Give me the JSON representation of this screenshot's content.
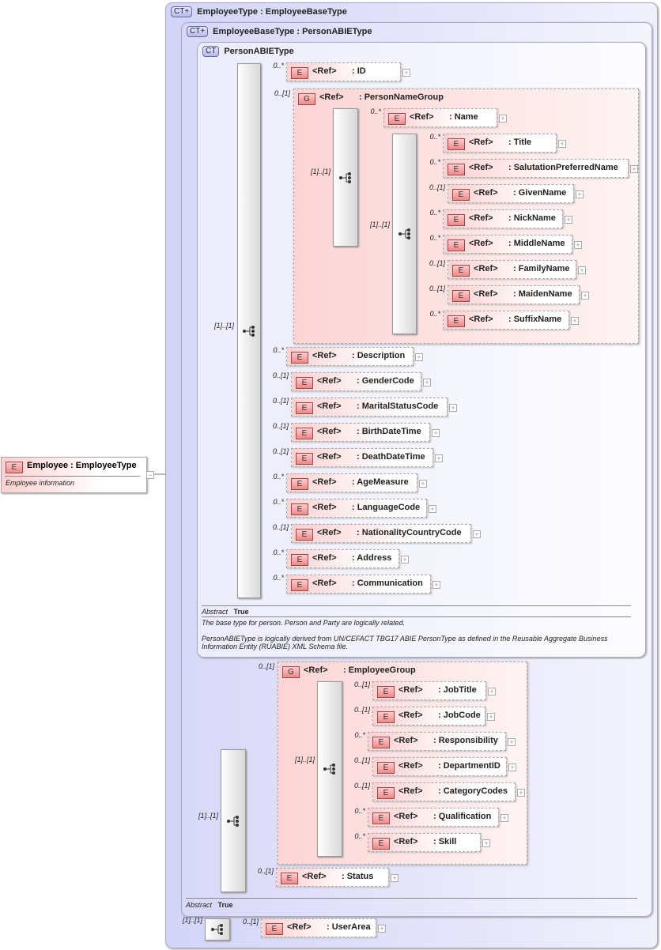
{
  "root": {
    "badge": "E",
    "name": "Employee",
    "type": "EmployeeType",
    "doc": "Employee information"
  },
  "containers": [
    {
      "badge": "CT+",
      "title": "EmployeeType : EmployeeBaseType"
    },
    {
      "badge": "CT+",
      "title": "EmployeeBaseType : PersonABIEType"
    },
    {
      "badge": "CT",
      "title": "PersonABIEType"
    }
  ],
  "sequence_card": "[1]..[1]",
  "elements": [
    {
      "badge": "E",
      "ref": "<Ref>",
      "name": ": ID",
      "card": "0..*"
    },
    {
      "badge": "E",
      "ref": "<Ref>",
      "name": ": Name",
      "card": "0..*"
    },
    {
      "badge": "E",
      "ref": "<Ref>",
      "name": ": Title",
      "card": "0..*"
    },
    {
      "badge": "E",
      "ref": "<Ref>",
      "name": ": SalutationPreferredName",
      "card": "0..*"
    },
    {
      "badge": "E",
      "ref": "<Ref>",
      "name": ": GivenName",
      "card": "0..[1]"
    },
    {
      "badge": "E",
      "ref": "<Ref>",
      "name": ": NickName",
      "card": "0..*"
    },
    {
      "badge": "E",
      "ref": "<Ref>",
      "name": ": MiddleName",
      "card": "0..*"
    },
    {
      "badge": "E",
      "ref": "<Ref>",
      "name": ": FamilyName",
      "card": "0..[1]"
    },
    {
      "badge": "E",
      "ref": "<Ref>",
      "name": ": MaidenName",
      "card": "0..[1]"
    },
    {
      "badge": "E",
      "ref": "<Ref>",
      "name": ": SuffixName",
      "card": "0..*"
    },
    {
      "badge": "E",
      "ref": "<Ref>",
      "name": ": Description",
      "card": "0..*"
    },
    {
      "badge": "E",
      "ref": "<Ref>",
      "name": ": GenderCode",
      "card": "0..[1]"
    },
    {
      "badge": "E",
      "ref": "<Ref>",
      "name": ": MaritalStatusCode",
      "card": "0..[1]"
    },
    {
      "badge": "E",
      "ref": "<Ref>",
      "name": ": BirthDateTime",
      "card": "0..[1]"
    },
    {
      "badge": "E",
      "ref": "<Ref>",
      "name": ": DeathDateTime",
      "card": "0..[1]"
    },
    {
      "badge": "E",
      "ref": "<Ref>",
      "name": ": AgeMeasure",
      "card": "0..*"
    },
    {
      "badge": "E",
      "ref": "<Ref>",
      "name": ": LanguageCode",
      "card": "0..*"
    },
    {
      "badge": "E",
      "ref": "<Ref>",
      "name": ": NationalityCountryCode",
      "card": "0..[1]"
    },
    {
      "badge": "E",
      "ref": "<Ref>",
      "name": ": Address",
      "card": "0..*"
    },
    {
      "badge": "E",
      "ref": "<Ref>",
      "name": ": Communication",
      "card": "0..*"
    },
    {
      "badge": "E",
      "ref": "<Ref>",
      "name": ": JobTitle",
      "card": "0..[1]"
    },
    {
      "badge": "E",
      "ref": "<Ref>",
      "name": ": JobCode",
      "card": "0..[1]"
    },
    {
      "badge": "E",
      "ref": "<Ref>",
      "name": ": Responsibility",
      "card": "0..*"
    },
    {
      "badge": "E",
      "ref": "<Ref>",
      "name": ": DepartmentID",
      "card": "0..[1]"
    },
    {
      "badge": "E",
      "ref": "<Ref>",
      "name": ": CategoryCodes",
      "card": "0..[1]"
    },
    {
      "badge": "E",
      "ref": "<Ref>",
      "name": ": Qualification",
      "card": "0..*"
    },
    {
      "badge": "E",
      "ref": "<Ref>",
      "name": ": Skill",
      "card": "0..*"
    },
    {
      "badge": "E",
      "ref": "<Ref>",
      "name": ": Status",
      "card": "0..[1]"
    },
    {
      "badge": "E",
      "ref": "<Ref>",
      "name": ": UserArea",
      "card": "0..[1]"
    }
  ],
  "groups": [
    {
      "badge": "G",
      "ref": "<Ref>",
      "name": ": PersonNameGroup",
      "card": "0..[1]"
    },
    {
      "badge": "G",
      "ref": "<Ref>",
      "name": ": EmployeeGroup",
      "card": "0..[1]"
    }
  ],
  "person_annotation": {
    "abstract_label": "Abstract",
    "abstract_value": "True",
    "doc1": "The base type for person. Person and Party are logically related.",
    "doc2": "PersonABIEType is logically derived from UN/CEFACT TBG17 ABIE PersonType as defined in the Reusable Aggregate Business Information Entity (RUABIE) XML Schema file."
  },
  "base_annotation": {
    "abstract_label": "Abstract",
    "abstract_value": "True"
  },
  "colors": {
    "element_badge": "#e88888",
    "complex_type_fill": "#d8d8f8",
    "group_fill": "#fcd4d4"
  }
}
